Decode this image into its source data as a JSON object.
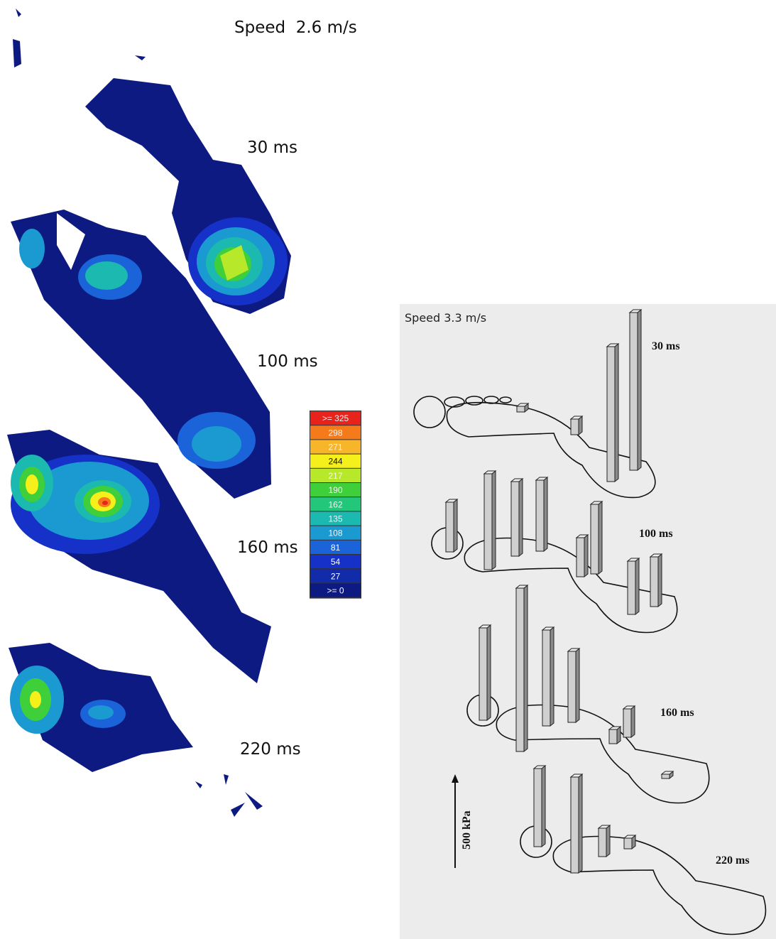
{
  "left_panel": {
    "title": "Speed  2.6 m/s",
    "time_labels": [
      "30 ms",
      "100 ms",
      "160 ms",
      "220 ms"
    ],
    "legend": {
      "labels": [
        ">= 325",
        "298",
        "271",
        "244",
        "217",
        "190",
        "162",
        "135",
        "108",
        "81",
        "54",
        "27",
        ">= 0"
      ],
      "colors": [
        "#e8231c",
        "#f47a1a",
        "#f7b52a",
        "#f5f01c",
        "#b8e82a",
        "#3ecf3a",
        "#22c77a",
        "#1bb9b0",
        "#1a9ad0",
        "#1b63d8",
        "#1631c8",
        "#122ba8",
        "#0d1a82"
      ]
    }
  },
  "right_panel": {
    "title": "Speed 3.3 m/s",
    "time_labels": [
      "30 ms",
      "100 ms",
      "160 ms",
      "220 ms"
    ],
    "scale_label": "500 kPa"
  }
}
